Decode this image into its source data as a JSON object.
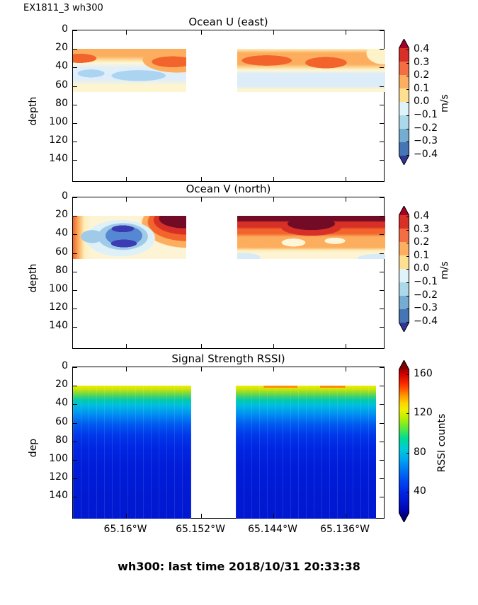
{
  "figure": {
    "suptitle": "EX1811_3 wh300",
    "footer": "wh300: last time 2018/10/31 20:33:38"
  },
  "axis": {
    "ylabel_panels": [
      "depth",
      "depth",
      "dep"
    ],
    "yticks": [
      "0",
      "20",
      "40",
      "60",
      "80",
      "100",
      "120",
      "140"
    ],
    "xticks": [
      "65.16°W",
      "65.152°W",
      "65.144°W",
      "65.136°W"
    ]
  },
  "panels": [
    {
      "title": "Ocean U (east)",
      "colorbar": {
        "ticks": [
          "0.4",
          "0.3",
          "0.2",
          "0.1",
          "0.0",
          "−0.1",
          "−0.2",
          "−0.3",
          "−0.4"
        ],
        "label": "m/s"
      }
    },
    {
      "title": "Ocean V (north)",
      "colorbar": {
        "ticks": [
          "0.4",
          "0.3",
          "0.2",
          "0.1",
          "0.0",
          "−0.1",
          "−0.2",
          "−0.3",
          "−0.4"
        ],
        "label": "m/s"
      }
    },
    {
      "title": "Signal Strength RSSI)",
      "colorbar": {
        "ticks": [
          "160",
          "120",
          "80",
          "40"
        ],
        "label": "RSSI counts"
      }
    }
  ],
  "palette": {
    "rdylbu_levels_top_to_bottom": [
      "#a50026",
      "#d73027",
      "#f46d43",
      "#fdae61",
      "#fee090",
      "#e0f3f8",
      "#abd9e9",
      "#74add1",
      "#4575b4",
      "#313695"
    ],
    "jet_top_to_bottom": [
      "#7f0000",
      "#d40000",
      "#ff3000",
      "#ff9100",
      "#ffd500",
      "#bdf000",
      "#5fe839",
      "#00dc93",
      "#00ccd8",
      "#00aaf0",
      "#0072f5",
      "#0044f0",
      "#0026e5",
      "#0013c8",
      "#00007f"
    ]
  },
  "chart_data": [
    {
      "type": "heatmap",
      "title": "Ocean U (east)",
      "ylabel": "depth",
      "units": "m/s",
      "colormap": "RdYlBu_r",
      "clim": [
        -0.4,
        0.4
      ],
      "colorbar_ticks": [
        0.4,
        0.3,
        0.2,
        0.1,
        0.0,
        -0.1,
        -0.2,
        -0.3,
        -0.4
      ],
      "x_ticks": [
        "65.16°W",
        "65.152°W",
        "65.144°W",
        "65.136°W"
      ],
      "depth_ticks": [
        0,
        20,
        40,
        60,
        80,
        100,
        120,
        140
      ],
      "depth_range_of_data": [
        20,
        66
      ],
      "segments": [
        {
          "name": "left",
          "x_extent": [
            "65.167°W",
            "65.154°W"
          ],
          "depths": [
            20,
            30,
            40,
            50,
            60
          ],
          "values": [
            [
              0.2,
              0.2,
              0.2,
              0.2,
              0.15,
              0.2
            ],
            [
              0.3,
              0.15,
              0.1,
              0.1,
              0.15,
              0.3
            ],
            [
              0.1,
              0.05,
              0.0,
              -0.05,
              0.0,
              0.1
            ],
            [
              0.0,
              -0.1,
              -0.05,
              -0.15,
              -0.1,
              0.05
            ],
            [
              0.05,
              0.0,
              -0.05,
              -0.1,
              -0.05,
              0.05
            ]
          ]
        },
        {
          "name": "right",
          "x_extent": [
            "65.147°W",
            "65.131°W"
          ],
          "depths": [
            20,
            30,
            40,
            50,
            60
          ],
          "values": [
            [
              0.15,
              0.2,
              0.2,
              0.15,
              0.2,
              0.1
            ],
            [
              0.2,
              0.3,
              0.25,
              0.3,
              0.25,
              0.05
            ],
            [
              0.1,
              0.15,
              0.1,
              0.15,
              0.1,
              0.0
            ],
            [
              -0.05,
              -0.1,
              -0.1,
              -0.1,
              -0.05,
              -0.05
            ],
            [
              0.0,
              -0.05,
              -0.05,
              -0.05,
              0.0,
              0.05
            ]
          ]
        }
      ],
      "gap_x_extent": [
        "65.153°W",
        "65.147°W"
      ]
    },
    {
      "type": "heatmap",
      "title": "Ocean V (north)",
      "ylabel": "depth",
      "units": "m/s",
      "colormap": "RdYlBu_r",
      "clim": [
        -0.4,
        0.4
      ],
      "colorbar_ticks": [
        0.4,
        0.3,
        0.2,
        0.1,
        0.0,
        -0.1,
        -0.2,
        -0.3,
        -0.4
      ],
      "x_ticks": [
        "65.16°W",
        "65.152°W",
        "65.144°W",
        "65.136°W"
      ],
      "depth_ticks": [
        0,
        20,
        40,
        60,
        80,
        100,
        120,
        140
      ],
      "depth_range_of_data": [
        20,
        66
      ],
      "segments": [
        {
          "name": "left",
          "x_extent": [
            "65.167°W",
            "65.154°W"
          ],
          "depths": [
            20,
            30,
            40,
            50,
            60
          ],
          "values": [
            [
              0.2,
              0.1,
              0.05,
              -0.1,
              0.2,
              0.45
            ],
            [
              0.1,
              -0.1,
              -0.3,
              -0.45,
              0.1,
              0.4
            ],
            [
              0.05,
              -0.2,
              -0.45,
              -0.3,
              0.0,
              0.3
            ],
            [
              0.0,
              -0.3,
              -0.45,
              -0.2,
              0.05,
              0.2
            ],
            [
              0.05,
              -0.1,
              -0.2,
              -0.1,
              0.05,
              0.1
            ]
          ]
        },
        {
          "name": "right",
          "x_extent": [
            "65.147°W",
            "65.131°W"
          ],
          "depths": [
            20,
            30,
            40,
            50,
            60
          ],
          "values": [
            [
              0.45,
              0.45,
              0.4,
              0.45,
              0.45,
              0.4
            ],
            [
              0.3,
              0.35,
              0.25,
              0.35,
              0.3,
              0.3
            ],
            [
              0.2,
              0.2,
              0.15,
              0.2,
              0.2,
              0.25
            ],
            [
              0.15,
              0.1,
              0.05,
              0.1,
              0.15,
              0.2
            ],
            [
              0.05,
              0.05,
              0.0,
              0.05,
              0.05,
              0.1
            ]
          ]
        }
      ],
      "gap_x_extent": [
        "65.153°W",
        "65.147°W"
      ]
    },
    {
      "type": "heatmap",
      "title": "Signal Strength RSSI)",
      "ylabel": "dep",
      "units": "RSSI counts",
      "colormap": "jet",
      "clim": [
        25,
        165
      ],
      "colorbar_ticks": [
        160,
        120,
        80,
        40
      ],
      "x_ticks": [
        "65.16°W",
        "65.152°W",
        "65.144°W",
        "65.136°W"
      ],
      "depth_ticks": [
        0,
        20,
        40,
        60,
        80,
        100,
        120,
        140
      ],
      "depth_range_of_data": [
        20,
        150
      ],
      "depths": [
        20,
        30,
        40,
        50,
        60,
        80,
        100,
        120,
        140
      ],
      "profile_values": [
        135,
        110,
        85,
        65,
        52,
        44,
        40,
        38,
        36
      ],
      "surface_max_right_segment": 150
    }
  ]
}
